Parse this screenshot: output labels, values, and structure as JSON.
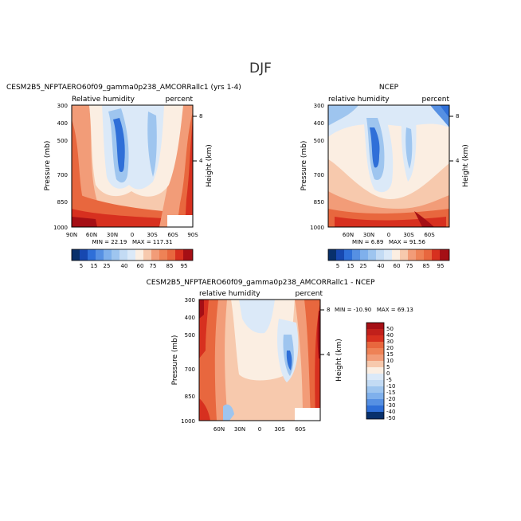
{
  "page_title": "DJF",
  "colors": {
    "blue_dark": "#08306b",
    "blue_mid": "#2f6fd8",
    "blue_light": "#9ec5ef",
    "blue_pale": "#dbe9f8",
    "cream": "#fbeee2",
    "peach": "#f7c9ad",
    "orange_light": "#f29c78",
    "orange": "#e8673e",
    "red": "#d7301f",
    "red_dark": "#a50f15",
    "white": "#ffffff"
  },
  "chart_data": [
    {
      "type": "heatmap",
      "title": "CESM2B5_NFPTAERO60f09_gamma0p238_AMCORRallc1 (yrs 1-4)",
      "subtitle_left": "Relative humidity",
      "subtitle_right": "percent",
      "ylabel": "Pressure (mb)",
      "ylabel_right": "Height (km)",
      "x_ticks": [
        "90N",
        "60N",
        "30N",
        "0",
        "30S",
        "60S",
        "90S"
      ],
      "y_ticks": [
        "300",
        "400",
        "500",
        "700",
        "850",
        "1000"
      ],
      "height_ticks": [
        "8",
        "4"
      ],
      "ylim": [
        1000,
        300
      ],
      "xlim": [
        "90N",
        "90S"
      ],
      "stats": "MIN = 22.19   MAX = 117.31",
      "colorbar": {
        "labels": [
          "5",
          "15",
          "25",
          "40",
          "60",
          "75",
          "85",
          "95"
        ]
      }
    },
    {
      "type": "heatmap",
      "title": "NCEP",
      "subtitle_left": "relative humidity",
      "subtitle_right": "percent",
      "ylabel": "Pressure (mb)",
      "ylabel_right": "Height (km)",
      "x_ticks": [
        "60N",
        "30N",
        "0",
        "30S",
        "60S"
      ],
      "y_ticks": [
        "300",
        "400",
        "500",
        "700",
        "850",
        "1000"
      ],
      "height_ticks": [
        "8",
        "4"
      ],
      "ylim": [
        1000,
        300
      ],
      "stats": "MIN = 6.89   MAX = 91.56",
      "colorbar": {
        "labels": [
          "5",
          "15",
          "25",
          "40",
          "60",
          "75",
          "85",
          "95"
        ]
      }
    },
    {
      "type": "heatmap",
      "title": "CESM2B5_NFPTAERO60f09_gamma0p238_AMCORRallc1 - NCEP",
      "subtitle_left": "relative humidity",
      "subtitle_right": "percent",
      "ylabel": "Pressure (mb)",
      "ylabel_right": "Height (km)",
      "x_ticks": [
        "60N",
        "30N",
        "0",
        "30S",
        "60S"
      ],
      "y_ticks": [
        "300",
        "400",
        "500",
        "700",
        "850",
        "1000"
      ],
      "height_ticks": [
        "8",
        "4"
      ],
      "ylim": [
        1000,
        300
      ],
      "stats": "MIN = -10.90   MAX = 69.13",
      "colorbar": {
        "labels": [
          "50",
          "40",
          "30",
          "20",
          "15",
          "10",
          "5",
          "0",
          "-5",
          "-10",
          "-15",
          "-20",
          "-30",
          "-40",
          "-50"
        ]
      }
    }
  ]
}
